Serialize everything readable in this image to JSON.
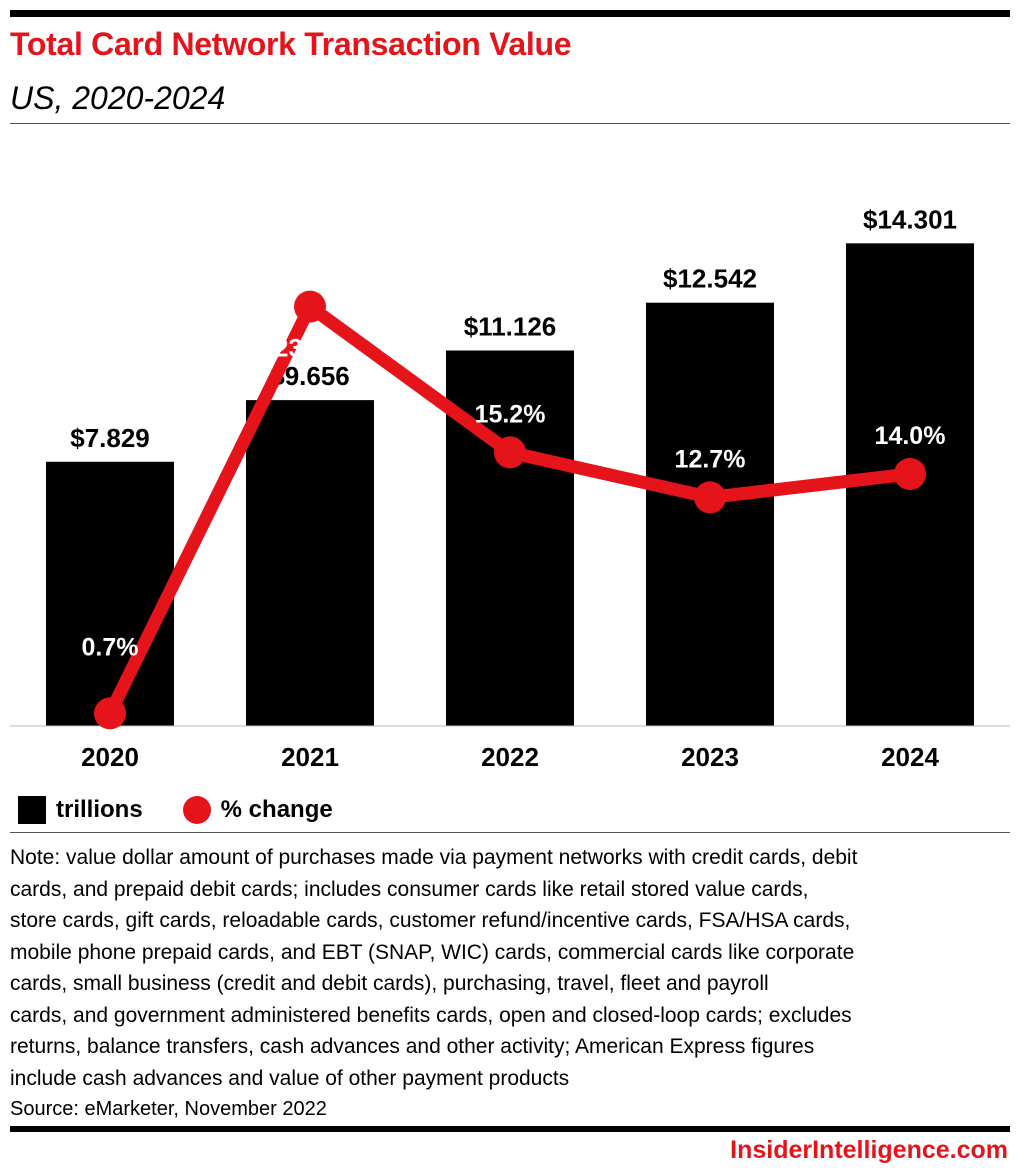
{
  "header": {
    "title": "Total Card Network Transaction Value",
    "subtitle": "US, 2020-2024"
  },
  "chart_data": {
    "type": "bar",
    "categories": [
      "2020",
      "2021",
      "2022",
      "2023",
      "2024"
    ],
    "series": [
      {
        "name": "trillions",
        "type": "bar",
        "values": [
          7.829,
          9.656,
          11.126,
          12.542,
          14.301
        ],
        "labels": [
          "$7.829",
          "$9.656",
          "$11.126",
          "$12.542",
          "$14.301"
        ],
        "color": "#000000"
      },
      {
        "name": "% change",
        "type": "line",
        "values": [
          0.7,
          23.3,
          15.2,
          12.7,
          14.0
        ],
        "labels": [
          "0.7%",
          "23.3%",
          "15.2%",
          "12.7%",
          "14.0%"
        ],
        "color": "#e5141b"
      }
    ],
    "ylim": [
      0,
      16
    ],
    "y2lim": [
      0,
      30
    ],
    "grid": false,
    "legend": "bottom-left"
  },
  "legend": {
    "bar_label": "trillions",
    "line_label": "% change"
  },
  "note": "Note: value dollar amount of purchases made via payment networks with credit cards, debit\ncards, and prepaid debit cards; includes consumer cards like retail stored value cards,\nstore cards, gift cards, reloadable cards, customer refund/incentive cards, FSA/HSA cards,\nmobile phone prepaid cards, and EBT (SNAP, WIC) cards, commercial cards like corporate\ncards, small business (credit and debit cards), purchasing, travel, fleet and payroll\ncards, and government administered benefits cards, open and closed-loop cards; excludes\nreturns, balance transfers, cash advances and other activity; American Express figures\ninclude cash advances and value of other payment products",
  "source": "Source: eMarketer, November 2022",
  "brand": "InsiderIntelligence.com",
  "colors": {
    "accent": "#e5141b",
    "bar": "#000000"
  }
}
